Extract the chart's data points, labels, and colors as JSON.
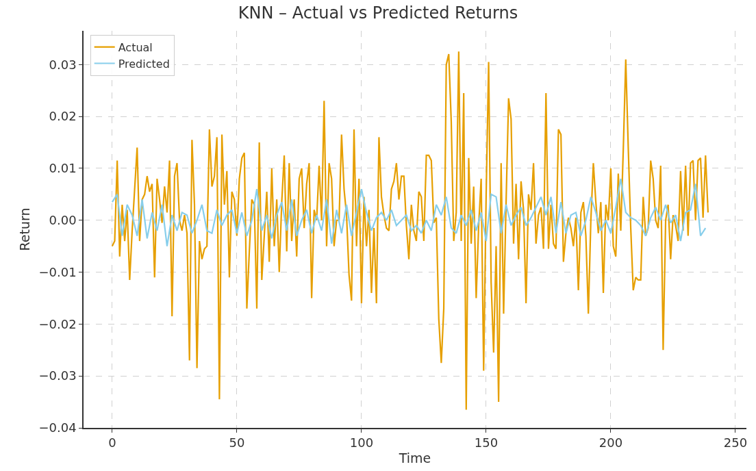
{
  "chart_data": {
    "type": "line",
    "title": "KNN – Actual vs Predicted Returns",
    "xlabel": "Time",
    "ylabel": "Return",
    "xlim": [
      -11.5,
      254.4
    ],
    "xticks": [
      0,
      50,
      100,
      150,
      200,
      250
    ],
    "ylim": [
      -0.04,
      0.0365
    ],
    "yticks": [
      {
        "value": 0.03,
        "label": "0.03"
      },
      {
        "value": 0.02,
        "label": "0.02"
      },
      {
        "value": 0.01,
        "label": "0.01"
      },
      {
        "value": 0,
        "label": "0.00"
      },
      {
        "value": -0.01,
        "label": "−0.01"
      },
      {
        "value": -0.02,
        "label": "−0.02"
      },
      {
        "value": -0.03,
        "label": "−0.03"
      },
      {
        "value": -0.04,
        "label": "−0.04"
      }
    ],
    "grid": true,
    "legend": "top left",
    "line_style": "solid",
    "marker": "none",
    "series": [
      {
        "name": "Actual",
        "color": "#e69f00",
        "x": [
          0,
          1,
          2,
          3,
          4,
          5,
          6,
          7,
          8,
          9,
          10,
          11,
          12,
          13,
          14,
          15,
          16,
          17,
          18,
          19,
          20,
          21,
          22,
          23,
          24,
          25,
          26,
          27,
          28,
          29,
          30,
          31,
          32,
          33,
          34,
          35,
          36,
          37,
          38,
          39,
          40,
          41,
          42,
          43,
          44,
          45,
          46,
          47,
          48,
          49,
          50,
          51,
          52,
          53,
          54,
          55,
          56,
          57,
          58,
          59,
          60,
          61,
          62,
          63,
          64,
          65,
          66,
          67,
          68,
          69,
          70,
          71,
          72,
          73,
          74,
          75,
          76,
          77,
          78,
          79,
          80,
          81,
          82,
          83,
          84,
          85,
          86,
          87,
          88,
          89,
          90,
          91,
          92,
          93,
          94,
          95,
          96,
          97,
          98,
          99,
          100,
          101,
          102,
          103,
          104,
          105,
          106,
          107,
          108,
          109,
          110,
          111,
          112,
          113,
          114,
          115,
          116,
          117,
          118,
          119,
          120,
          121,
          122,
          123,
          124,
          125,
          126,
          127,
          128,
          129,
          130,
          131,
          132,
          133,
          134,
          135,
          136,
          137,
          138,
          139,
          140,
          141,
          142,
          143,
          144,
          145,
          146,
          147,
          148,
          149,
          150,
          151,
          152,
          153,
          154,
          155,
          156,
          157,
          158,
          159,
          160,
          161,
          162,
          163,
          164,
          165,
          166,
          167,
          168,
          169,
          170,
          171,
          172,
          173,
          174,
          175,
          176,
          177,
          178,
          179,
          180,
          181,
          182,
          183,
          184,
          185,
          186,
          187,
          188,
          189,
          190,
          191,
          192,
          193,
          194,
          195,
          196,
          197,
          198,
          199,
          200,
          201,
          202,
          203,
          204,
          205,
          206,
          207,
          208,
          209,
          210,
          211,
          212,
          213,
          214,
          215,
          216,
          217,
          218,
          219,
          220,
          221,
          222,
          223,
          224,
          225,
          226,
          227,
          228,
          229,
          230,
          231,
          232,
          233,
          234,
          235,
          236,
          237,
          238,
          239
        ],
        "values": [
          -0.005,
          -0.004,
          0.0115,
          -0.007,
          0.003,
          -0.004,
          0.002,
          -0.0115,
          -0.002,
          0.006,
          0.014,
          -0.004,
          0.004,
          0.005,
          0.0085,
          0.0055,
          0.007,
          -0.011,
          0.008,
          0.004,
          -0.0005,
          0.0065,
          0.0015,
          0.0115,
          -0.0185,
          0.0085,
          0.011,
          0.0,
          -0.002,
          0.001,
          -0.0025,
          -0.027,
          0.0155,
          0.003,
          -0.0285,
          -0.004,
          -0.0075,
          -0.0055,
          -0.005,
          0.0175,
          0.0065,
          0.0085,
          0.016,
          -0.0345,
          0.0165,
          0.003,
          0.0095,
          -0.011,
          0.0055,
          0.004,
          -0.003,
          0.008,
          0.012,
          0.013,
          -0.017,
          -0.006,
          0.004,
          0.003,
          -0.017,
          0.015,
          -0.0115,
          -0.003,
          0.0055,
          -0.008,
          0.01,
          -0.005,
          0.004,
          -0.01,
          0.0035,
          0.0125,
          -0.006,
          0.011,
          -0.004,
          0.004,
          -0.007,
          0.008,
          0.01,
          -0.0015,
          0.007,
          0.011,
          -0.015,
          0.002,
          0.0,
          0.0105,
          0.0,
          0.023,
          -0.005,
          0.011,
          0.008,
          -0.005,
          0.0,
          0.0,
          0.0165,
          0.006,
          0.001,
          -0.0105,
          -0.0155,
          0.0175,
          -0.005,
          0.008,
          -0.016,
          0.0045,
          -0.005,
          0.002,
          -0.014,
          -0.0015,
          -0.016,
          0.016,
          0.0045,
          0.001,
          -0.0015,
          -0.002,
          0.006,
          0.0075,
          0.011,
          0.004,
          0.0085,
          0.0085,
          -0.001,
          -0.0075,
          0.003,
          -0.002,
          -0.004,
          0.0055,
          0.0045,
          -0.004,
          0.0125,
          0.0125,
          0.0115,
          -0.0005,
          0.0005,
          -0.019,
          -0.0275,
          -0.017,
          0.03,
          0.032,
          0.019,
          -0.004,
          0.0015,
          0.0325,
          -0.004,
          0.0245,
          -0.0365,
          0.012,
          -0.0045,
          0.0065,
          -0.015,
          -0.001,
          0.008,
          -0.029,
          0.005,
          0.0305,
          -0.012,
          -0.0255,
          -0.005,
          -0.035,
          0.011,
          -0.018,
          0.0035,
          0.0235,
          0.0195,
          -0.0045,
          0.007,
          -0.0075,
          0.0075,
          0.002,
          -0.016,
          0.005,
          0.002,
          0.011,
          -0.0045,
          0.001,
          0.0025,
          -0.0055,
          0.0245,
          -0.0055,
          0.003,
          -0.0045,
          -0.0055,
          0.0175,
          0.0165,
          -0.008,
          -0.0025,
          0.0005,
          -0.0015,
          -0.005,
          0.0005,
          -0.0135,
          0.0015,
          0.0035,
          -0.003,
          -0.018,
          0.0,
          0.011,
          0.0035,
          -0.0025,
          0.0035,
          -0.014,
          0.003,
          0.0,
          0.01,
          -0.005,
          -0.007,
          0.009,
          -0.002,
          0.0135,
          0.031,
          0.014,
          -0.0015,
          -0.0135,
          -0.011,
          -0.0115,
          -0.0115,
          0.0045,
          -0.003,
          -0.0015,
          0.0115,
          0.008,
          0.0,
          -0.0015,
          0.0105,
          -0.025,
          0.0,
          0.003,
          -0.0075,
          0.001,
          -0.001,
          -0.004,
          0.0095,
          -0.002,
          0.0105,
          -0.003,
          0.011,
          0.0115,
          0.0,
          0.0115,
          0.012,
          0.0005,
          0.0125,
          0.0015
        ]
      },
      {
        "name": "Predicted",
        "color": "#87ceeb",
        "x": [
          0,
          2,
          4,
          6,
          8,
          10,
          12,
          14,
          16,
          18,
          20,
          22,
          24,
          26,
          28,
          30,
          32,
          34,
          36,
          38,
          40,
          42,
          44,
          46,
          48,
          50,
          52,
          54,
          56,
          58,
          60,
          62,
          64,
          66,
          68,
          70,
          72,
          74,
          76,
          78,
          80,
          82,
          84,
          86,
          88,
          90,
          92,
          94,
          96,
          98,
          100,
          102,
          104,
          106,
          108,
          110,
          112,
          114,
          116,
          118,
          120,
          122,
          124,
          126,
          128,
          130,
          132,
          134,
          136,
          138,
          140,
          142,
          144,
          146,
          148,
          150,
          152,
          154,
          156,
          158,
          160,
          162,
          164,
          166,
          168,
          170,
          172,
          174,
          176,
          178,
          180,
          182,
          184,
          186,
          188,
          190,
          192,
          194,
          196,
          198,
          200,
          202,
          204,
          206,
          208,
          210,
          212,
          214,
          216,
          218,
          220,
          222,
          224,
          226,
          228,
          230,
          232,
          234,
          236,
          238
        ],
        "values": [
          0.0035,
          0.005,
          -0.003,
          0.003,
          0.001,
          -0.003,
          0.004,
          -0.0035,
          0.0015,
          -0.002,
          0.003,
          -0.005,
          0.001,
          -0.002,
          0.0015,
          0.001,
          -0.0025,
          0.0,
          0.003,
          -0.002,
          -0.0025,
          0.002,
          -0.001,
          0.001,
          0.002,
          -0.0025,
          0.0015,
          -0.003,
          0.0,
          0.006,
          -0.002,
          0.001,
          -0.0035,
          0.001,
          0.0035,
          -0.002,
          0.004,
          -0.003,
          0.0,
          0.002,
          -0.0025,
          0.001,
          -0.002,
          0.004,
          -0.0045,
          0.002,
          -0.0025,
          0.003,
          -0.003,
          0.0015,
          0.006,
          0.0015,
          -0.002,
          0.0005,
          0.0015,
          0.0,
          0.002,
          -0.001,
          0.0,
          0.001,
          -0.002,
          -0.001,
          -0.0025,
          0.0,
          -0.002,
          0.003,
          0.001,
          0.0045,
          -0.0015,
          -0.0025,
          0.001,
          -0.001,
          0.002,
          -0.002,
          0.0015,
          -0.004,
          0.005,
          0.0045,
          -0.0025,
          0.003,
          -0.001,
          0.001,
          0.0025,
          -0.001,
          0.0005,
          0.0025,
          0.0045,
          0.001,
          0.0045,
          -0.0025,
          0.0035,
          -0.0025,
          0.001,
          0.0015,
          -0.003,
          0.0,
          0.0045,
          0.0015,
          -0.002,
          0.0,
          -0.0025,
          0.0025,
          0.008,
          0.0015,
          0.0005,
          0.0,
          -0.001,
          -0.003,
          0.0005,
          0.0025,
          0.0,
          0.003,
          -0.0005,
          0.001,
          -0.004,
          0.0015,
          0.002,
          0.007,
          -0.003,
          -0.0015
        ]
      }
    ]
  }
}
